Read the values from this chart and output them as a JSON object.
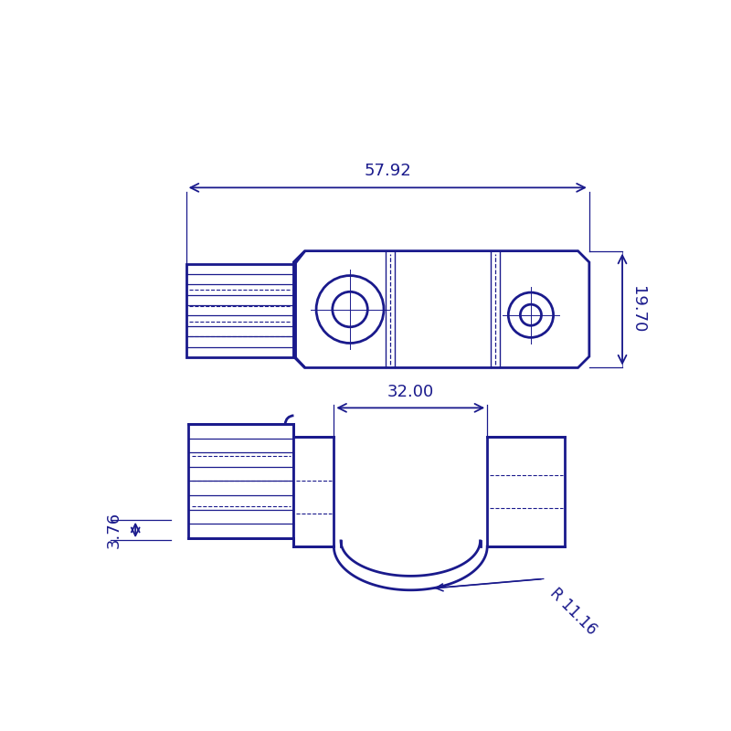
{
  "bg_color": "#ffffff",
  "line_color": "#1a1a8c",
  "fig_width": 8.0,
  "fig_height": 8.0,
  "dim_57_92": "57.92",
  "dim_19_70": "19.70",
  "dim_32_00": "32.00",
  "dim_3_76": "3.76",
  "dim_R11_16": "R 11.16",
  "lw_main": 2.0,
  "lw_thin": 1.0,
  "lw_dash": 0.9,
  "fontsize_dim": 13
}
